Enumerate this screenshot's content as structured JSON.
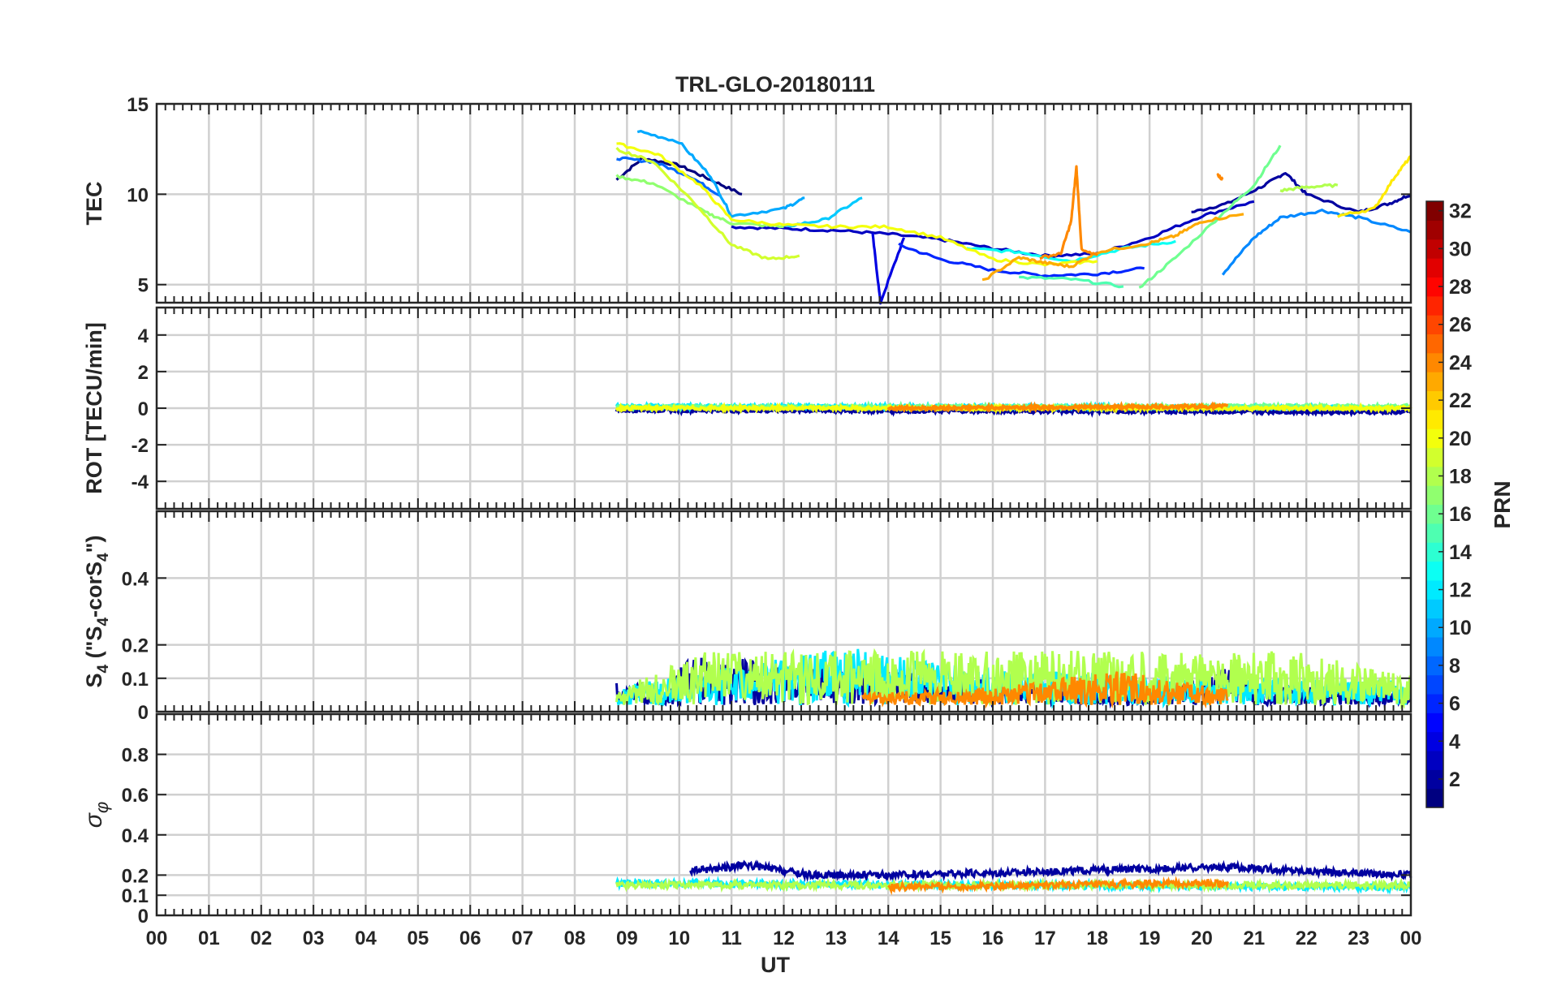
{
  "figure": {
    "title": "TRL-GLO-20180111"
  },
  "x_axis": {
    "label": "UT",
    "tick_labels": [
      "00",
      "01",
      "02",
      "03",
      "04",
      "05",
      "06",
      "07",
      "08",
      "09",
      "10",
      "11",
      "12",
      "13",
      "14",
      "15",
      "16",
      "17",
      "18",
      "19",
      "20",
      "21",
      "22",
      "23",
      "00"
    ],
    "range_hours": [
      0,
      24
    ]
  },
  "colorbar": {
    "label": "PRN",
    "range": [
      1,
      32
    ],
    "tick_labels": [
      "2",
      "4",
      "6",
      "8",
      "10",
      "12",
      "14",
      "16",
      "18",
      "20",
      "22",
      "24",
      "26",
      "28",
      "30",
      "32"
    ],
    "colormap": "jet",
    "levels": 32
  },
  "panels": [
    {
      "id": "tec",
      "ylabel": "TEC",
      "ylim": [
        4,
        15
      ],
      "yticks": [
        5,
        10,
        15
      ]
    },
    {
      "id": "rot",
      "ylabel": "ROT [TECU/min]",
      "ylim": [
        -5.5,
        5.5
      ],
      "yticks": [
        -4,
        -2,
        0,
        2,
        4
      ]
    },
    {
      "id": "s4",
      "ylabel_parts": [
        "S",
        "4",
        " (\"S",
        "4",
        "-corS",
        "4",
        "\")"
      ],
      "ylim": [
        0,
        0.6
      ],
      "yticks": [
        0,
        0.1,
        0.2,
        0.4
      ]
    },
    {
      "id": "sigma",
      "ylabel_parts": [
        "σ",
        "φ"
      ],
      "ylim": [
        0,
        1
      ],
      "yticks": [
        0,
        0.1,
        0.2,
        0.4,
        0.6,
        0.8
      ]
    }
  ],
  "chart_data": [
    {
      "type": "line",
      "panel": "tec",
      "ylabel": "TEC",
      "ylim": [
        4,
        15
      ],
      "grid": true,
      "series": [
        {
          "prn": 1,
          "x": [
            8.8,
            9.3,
            10.0,
            10.6,
            11.2
          ],
          "y": [
            10.8,
            12.0,
            11.6,
            10.8,
            10.0
          ]
        },
        {
          "prn": 2,
          "x": [
            19.8,
            20.5,
            21.2,
            21.6,
            22.0,
            23.0,
            23.6,
            24.0
          ],
          "y": [
            9.0,
            9.5,
            10.5,
            11.2,
            10.0,
            9.0,
            9.5,
            10.0
          ]
        },
        {
          "prn": 3,
          "x": [
            11.0,
            12.0,
            13.0,
            14.0,
            15.0,
            16.0,
            17.0,
            18.0,
            19.0,
            20.0,
            21.0
          ],
          "y": [
            8.2,
            8.1,
            8.0,
            7.8,
            7.5,
            7.0,
            6.6,
            6.7,
            7.6,
            8.8,
            9.6
          ]
        },
        {
          "prn": 4,
          "x": [
            13.7,
            13.85,
            14.3
          ],
          "y": [
            7.8,
            4.0,
            7.6
          ]
        },
        {
          "prn": 6,
          "x": [
            14.2,
            15.0,
            16.0,
            17.0,
            18.0,
            18.9
          ],
          "y": [
            7.2,
            6.4,
            5.8,
            5.5,
            5.6,
            5.9
          ]
        },
        {
          "prn": 8,
          "x": [
            8.8,
            9.5,
            10.2,
            10.8
          ],
          "y": [
            12.0,
            11.8,
            11.0,
            9.9
          ]
        },
        {
          "prn": 9,
          "x": [
            20.4,
            21.0,
            21.5,
            22.3,
            23.0,
            24.0
          ],
          "y": [
            5.6,
            7.6,
            8.7,
            9.1,
            8.7,
            7.9
          ]
        },
        {
          "prn": 10,
          "x": [
            9.2,
            10.0,
            10.6,
            11.0,
            12.0,
            12.4
          ],
          "y": [
            13.5,
            12.9,
            11.0,
            8.8,
            9.2,
            9.8
          ]
        },
        {
          "prn": 11,
          "x": [
            12.0,
            12.8,
            13.5
          ],
          "y": [
            8.2,
            8.6,
            9.8
          ]
        },
        {
          "prn": 13,
          "x": [
            15.5,
            16.5,
            17.5,
            18.5,
            19.5
          ],
          "y": [
            7.0,
            6.8,
            6.3,
            7.0,
            7.4
          ]
        },
        {
          "prn": 15,
          "x": [
            16.5,
            17.5,
            18.5
          ],
          "y": [
            5.4,
            5.3,
            4.9
          ]
        },
        {
          "prn": 16,
          "x": [
            18.8,
            19.5,
            20.5,
            21.0,
            21.5
          ],
          "y": [
            4.8,
            6.5,
            9.2,
            10.5,
            12.7
          ]
        },
        {
          "prn": 17,
          "x": [
            8.8,
            9.5,
            10.5,
            11.0,
            12.0
          ],
          "y": [
            11.0,
            10.6,
            9.0,
            8.4,
            8.2
          ]
        },
        {
          "prn": 18,
          "x": [
            21.5,
            22.0,
            22.6
          ],
          "y": [
            10.2,
            10.4,
            10.5
          ]
        },
        {
          "prn": 19,
          "x": [
            8.8,
            9.5,
            10.3,
            11.0,
            11.7,
            12.3
          ],
          "y": [
            12.5,
            11.8,
            9.5,
            7.2,
            6.4,
            6.6
          ]
        },
        {
          "prn": 20,
          "x": [
            8.8,
            9.6,
            10.4,
            11.0,
            12.0,
            13.0,
            14.0,
            15.0,
            16.0,
            17.0,
            18.0
          ],
          "y": [
            12.8,
            12.2,
            10.5,
            8.6,
            8.3,
            8.2,
            8.2,
            7.6,
            6.4,
            6.1,
            6.3
          ]
        },
        {
          "prn": 21,
          "x": [
            22.6,
            23.3,
            23.7,
            24.0
          ],
          "y": [
            8.8,
            9.2,
            11.0,
            12.1
          ]
        },
        {
          "prn": 23,
          "x": [
            15.8,
            16.5,
            17.0,
            17.5,
            18.0,
            19.0,
            19.5,
            20.0,
            20.8
          ],
          "y": [
            5.2,
            6.5,
            6.2,
            6.0,
            6.8,
            7.3,
            7.7,
            8.5,
            8.9
          ]
        },
        {
          "prn": 24,
          "x": [
            16.9,
            17.3,
            17.5,
            17.6,
            17.7,
            18.0
          ],
          "y": [
            6.5,
            6.7,
            8.5,
            11.5,
            6.9,
            6.6
          ]
        },
        {
          "prn": 24,
          "x": [
            20.3,
            20.4
          ],
          "y": [
            11.1,
            10.8
          ]
        }
      ]
    },
    {
      "type": "line",
      "panel": "rot",
      "ylabel": "ROT [TECU/min]",
      "ylim": [
        -5.5,
        5.5
      ],
      "grid": true,
      "series": [
        {
          "prn": 2,
          "x": [
            8.8,
            24.0
          ],
          "y": [
            -0.1,
            -0.2
          ]
        },
        {
          "prn": 12,
          "x": [
            8.8,
            23.0
          ],
          "y": [
            0.1,
            0.05
          ]
        },
        {
          "prn": 16,
          "x": [
            8.8,
            24.0
          ],
          "y": [
            0.05,
            0.1
          ]
        },
        {
          "prn": 20,
          "x": [
            8.8,
            24.0
          ],
          "y": [
            0.0,
            0.0
          ]
        },
        {
          "prn": 24,
          "x": [
            14.0,
            20.5
          ],
          "y": [
            0.0,
            0.1
          ]
        }
      ]
    },
    {
      "type": "line",
      "panel": "s4",
      "ylabel": "S4 (\"S4-corS4\")",
      "ylim": [
        0,
        0.6
      ],
      "grid": true,
      "series": [
        {
          "prn": 2,
          "x": [
            8.8,
            9.8,
            10.1,
            18.8,
            20.4,
            21.0,
            24.0
          ],
          "y": [
            0.08,
            0.05,
            0.17,
            0.04,
            0.13,
            0.07,
            0.04
          ]
        },
        {
          "prn": 12,
          "x": [
            8.8,
            13.4,
            15.6,
            24.0
          ],
          "y": [
            0.06,
            0.2,
            0.12,
            0.08
          ]
        },
        {
          "prn": 18,
          "x": [
            8.8,
            10.5,
            21.7,
            24.0
          ],
          "y": [
            0.05,
            0.18,
            0.18,
            0.1
          ]
        },
        {
          "prn": 24,
          "x": [
            13.5,
            16.0,
            18.5,
            20.5
          ],
          "y": [
            0.04,
            0.06,
            0.12,
            0.05
          ]
        }
      ]
    },
    {
      "type": "line",
      "panel": "sigma",
      "ylabel": "σφ",
      "ylim": [
        0,
        1
      ],
      "grid": true,
      "series": [
        {
          "prn": 2,
          "x": [
            10.2,
            11.3,
            12.5,
            14.2,
            20.4,
            22.0,
            24.0
          ],
          "y": [
            0.22,
            0.25,
            0.2,
            0.2,
            0.24,
            0.22,
            0.2
          ]
        },
        {
          "prn": 12,
          "x": [
            8.8,
            24.0
          ],
          "y": [
            0.16,
            0.14
          ]
        },
        {
          "prn": 18,
          "x": [
            8.8,
            24.0
          ],
          "y": [
            0.15,
            0.15
          ]
        },
        {
          "prn": 24,
          "x": [
            14.0,
            20.5
          ],
          "y": [
            0.14,
            0.16
          ]
        }
      ]
    }
  ]
}
